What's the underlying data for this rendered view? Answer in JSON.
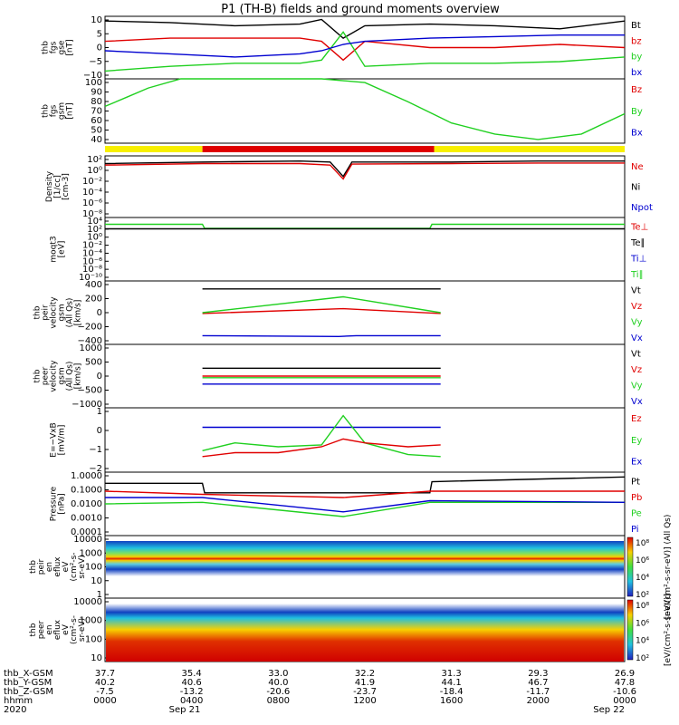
{
  "title": "P1 (TH-B) fields and ground moments overview",
  "colors": {
    "black": "#000000",
    "red": "#e00000",
    "green": "#20d020",
    "blue": "#0000d0",
    "yellow": "#f8f000",
    "bar_red": "#e00000"
  },
  "chart_data": [
    {
      "type": "line",
      "panel": "fgs_gse",
      "ylabel": [
        "thb",
        "fgs",
        "gse",
        "[nT]"
      ],
      "yticks": [
        "10",
        "5",
        "0",
        "−5",
        "−10"
      ],
      "ylim": [
        -10,
        10
      ],
      "legend": [
        "Bt",
        "bz",
        "by",
        "bx"
      ],
      "legend_colors": [
        "black",
        "red",
        "green",
        "blue"
      ],
      "series": [
        {
          "name": "Bt",
          "color": "black",
          "x": [
            0,
            3,
            6,
            9,
            10,
            11,
            12,
            15,
            18,
            21,
            24
          ],
          "y": [
            8.5,
            8,
            7,
            7.5,
            9,
            3,
            7,
            7.5,
            7,
            6,
            8.5
          ]
        },
        {
          "name": "bz",
          "color": "red",
          "x": [
            0,
            3,
            6,
            9,
            10,
            11,
            12,
            15,
            18,
            21,
            24
          ],
          "y": [
            2,
            3,
            3,
            3,
            2,
            -4,
            2,
            0,
            0,
            1,
            0
          ]
        },
        {
          "name": "by",
          "color": "green",
          "x": [
            0,
            3,
            6,
            9,
            10,
            11,
            12,
            15,
            18,
            21,
            24
          ],
          "y": [
            -7.5,
            -6,
            -5,
            -5,
            -4,
            5,
            -6,
            -5,
            -5,
            -4.5,
            -3
          ]
        },
        {
          "name": "bx",
          "color": "blue",
          "x": [
            0,
            3,
            6,
            9,
            10,
            11,
            12,
            15,
            18,
            21,
            24
          ],
          "y": [
            -1,
            -2,
            -3,
            -2,
            -1,
            1,
            2,
            3,
            3.5,
            4,
            4
          ]
        }
      ]
    },
    {
      "type": "line",
      "panel": "fgs_gsm",
      "ylabel": [
        "thb",
        "fgs",
        "gsm",
        "[nT]"
      ],
      "yticks": [
        "100",
        "90",
        "80",
        "70",
        "60",
        "50",
        "40"
      ],
      "ylim": [
        30,
        100
      ],
      "legend": [
        "Bz",
        "By",
        "Bx"
      ],
      "legend_colors": [
        "red",
        "green",
        "blue"
      ],
      "series": [
        {
          "name": "By",
          "color": "green",
          "x": [
            0,
            1,
            2,
            3.5,
            10,
            12,
            14,
            16,
            18,
            20,
            22,
            24
          ],
          "y": [
            70,
            80,
            90,
            100,
            100,
            96,
            75,
            52,
            40,
            34,
            40,
            62
          ]
        }
      ]
    },
    {
      "type": "line",
      "panel": "density",
      "ylabel": [
        "Density",
        "[1/cc]",
        "[cm-3]"
      ],
      "yticks": [
        "10²",
        "10⁰",
        "10⁻²",
        "10⁻⁴",
        "10⁻⁶",
        "10⁻⁸"
      ],
      "ylim": [
        "1e-9",
        "1e3"
      ],
      "legend": [
        "Ne",
        "Ni",
        "Npot"
      ],
      "legend_colors": [
        "red",
        "black",
        "blue"
      ],
      "series": [
        {
          "name": "Ni",
          "color": "black",
          "x": [
            0,
            4.5,
            9,
            10.4,
            11,
            11.4,
            16,
            20,
            24
          ],
          "y": [
            1.5,
            1.8,
            2,
            1.8,
            -1,
            1.8,
            1.8,
            2,
            2
          ]
        },
        {
          "name": "Ne",
          "color": "red",
          "x": [
            0,
            4.5,
            9,
            10.4,
            11,
            11.4,
            16,
            20,
            24
          ],
          "y": [
            1.2,
            1.5,
            1.5,
            1.2,
            -1.5,
            1.4,
            1.5,
            1.6,
            1.6
          ]
        }
      ]
    },
    {
      "type": "line",
      "panel": "moms_temp",
      "ylabel": [
        "moqt3",
        "[eV]"
      ],
      "yticks": [
        "10⁴",
        "10²",
        "10⁰",
        "10⁻²",
        "10⁻⁴",
        "10⁻⁶",
        "10⁻⁸",
        "10⁻¹⁰"
      ],
      "ylim": [
        "1e-10",
        "1e4"
      ],
      "legend": [
        "Te⊥",
        "Te∥",
        "Ti⊥",
        "Ti∥"
      ],
      "legend_colors": [
        "red",
        "black",
        "blue",
        "green"
      ],
      "series": [
        {
          "name": "Ti∥",
          "color": "green",
          "x": [
            0,
            4.5,
            4.6,
            15,
            15.1,
            24
          ],
          "y": [
            2.5,
            2.5,
            1.6,
            1.6,
            2.5,
            2.5
          ]
        },
        {
          "name": "Te∥",
          "color": "black",
          "x": [
            0,
            24
          ],
          "y": [
            1.5,
            1.5
          ]
        }
      ]
    },
    {
      "type": "line",
      "panel": "peir_velocity",
      "ylabel": [
        "thb",
        "peir",
        "velocity",
        "gsm",
        "(All Qs)",
        "[km/s]"
      ],
      "yticks": [
        "400",
        "200",
        "0",
        "−200",
        "−400"
      ],
      "ylim": [
        -400,
        400
      ],
      "legend": [
        "Vt",
        "Vz",
        "Vy",
        "Vx"
      ],
      "legend_colors": [
        "black",
        "red",
        "green",
        "blue"
      ],
      "series": [
        {
          "name": "Vt",
          "color": "black",
          "x": [
            4.5,
            10,
            10.8,
            11.2,
            11.6,
            15.5
          ],
          "y": [
            300,
            300,
            300,
            300,
            300,
            300
          ]
        },
        {
          "name": "Vz",
          "color": "red",
          "x": [
            4.5,
            11,
            15.5
          ],
          "y": [
            -10,
            50,
            -10
          ]
        },
        {
          "name": "Vy",
          "color": "green",
          "x": [
            4.5,
            11,
            15.5
          ],
          "y": [
            0,
            200,
            0
          ]
        },
        {
          "name": "Vx",
          "color": "blue",
          "x": [
            4.5,
            10.8,
            11.6,
            15.5
          ],
          "y": [
            -290,
            -300,
            -290,
            -290
          ]
        }
      ]
    },
    {
      "type": "line",
      "panel": "peer_velocity",
      "ylabel": [
        "thb",
        "peer",
        "velocity",
        "gsm",
        "(All Qs)",
        "[km/s]"
      ],
      "yticks": [
        "1000",
        "500",
        "0",
        "−500",
        "−1000"
      ],
      "ylim": [
        -1000,
        1000
      ],
      "legend": [
        "Vt",
        "Vz",
        "Vy",
        "Vx"
      ],
      "legend_colors": [
        "black",
        "red",
        "green",
        "blue"
      ],
      "series": [
        {
          "name": "Vt",
          "color": "black",
          "x": [
            4.5,
            15.5
          ],
          "y": [
            250,
            250
          ]
        },
        {
          "name": "Vz",
          "color": "red",
          "x": [
            4.5,
            15.5
          ],
          "y": [
            0,
            0
          ]
        },
        {
          "name": "Vy",
          "color": "green",
          "x": [
            4.5,
            15.5
          ],
          "y": [
            -50,
            -50
          ]
        },
        {
          "name": "Vx",
          "color": "blue",
          "x": [
            4.5,
            15.5
          ],
          "y": [
            -250,
            -250
          ]
        }
      ]
    },
    {
      "type": "line",
      "panel": "e_vxb",
      "ylabel": [
        "E=−VxB",
        "[mV/m]"
      ],
      "yticks": [
        "1",
        "0",
        "−1",
        "−2"
      ],
      "ylim": [
        -2.3,
        1
      ],
      "legend": [
        "Ez",
        "Ey",
        "Ex"
      ],
      "legend_colors": [
        "red",
        "green",
        "blue"
      ],
      "series": [
        {
          "name": "Ex",
          "color": "blue",
          "x": [
            4.5,
            9,
            10,
            11,
            12,
            15.5
          ],
          "y": [
            0,
            0,
            0,
            0,
            0,
            0
          ]
        },
        {
          "name": "Ey",
          "color": "green",
          "x": [
            4.5,
            6,
            8,
            10,
            11,
            12,
            14,
            15.5
          ],
          "y": [
            -1.2,
            -0.8,
            -1.0,
            -0.9,
            0.6,
            -0.8,
            -1.4,
            -1.5
          ]
        },
        {
          "name": "Ez",
          "color": "red",
          "x": [
            4.5,
            6,
            8,
            10,
            11,
            12,
            14,
            15.5
          ],
          "y": [
            -1.5,
            -1.3,
            -1.3,
            -1.0,
            -0.6,
            -0.8,
            -1.0,
            -0.9
          ]
        }
      ]
    },
    {
      "type": "line",
      "panel": "pressure",
      "ylabel": [
        "Pressure",
        "[nPa]"
      ],
      "yticks": [
        "1.0000",
        "0.1000",
        "0.0100",
        "0.0010",
        "0.0001"
      ],
      "ylim": [
        "1e-4",
        "1"
      ],
      "legend": [
        "Pt",
        "Pb",
        "Pe",
        "Pi"
      ],
      "legend_colors": [
        "black",
        "red",
        "green",
        "blue"
      ],
      "series": [
        {
          "name": "Pt",
          "color": "black",
          "x": [
            0,
            4.5,
            4.6,
            15,
            15.1,
            24
          ],
          "y": [
            -0.7,
            -0.7,
            -1.3,
            -1.3,
            -0.6,
            -0.3
          ]
        },
        {
          "name": "Pb",
          "color": "red",
          "x": [
            0,
            4.5,
            11,
            15,
            24
          ],
          "y": [
            -1.2,
            -1.4,
            -1.6,
            -1.2,
            -1.2
          ]
        },
        {
          "name": "Pe",
          "color": "green",
          "x": [
            0,
            4.5,
            11,
            15,
            24
          ],
          "y": [
            -2.0,
            -1.9,
            -2.8,
            -1.9,
            -1.9
          ]
        },
        {
          "name": "Pi",
          "color": "blue",
          "x": [
            0,
            4.5,
            11,
            15,
            24
          ],
          "y": [
            -1.6,
            -1.6,
            -2.5,
            -1.8,
            -1.9
          ]
        }
      ]
    },
    {
      "type": "heatmap",
      "panel": "peir_en_eflux",
      "ylabel": [
        "thb",
        "peir",
        "en",
        "eflux",
        "eV",
        "(cm²-s-",
        "sr-eV)"
      ],
      "yticks": [
        "10000",
        "1000",
        "100",
        "10",
        "1"
      ],
      "colorbar_ticks": [
        "10⁸",
        "10⁶",
        "10⁴",
        "10²"
      ],
      "colorbar_label": "[eV/(cm²-s-sr-eV)] (All Qs)"
    },
    {
      "type": "heatmap",
      "panel": "peer_en_eflux",
      "ylabel": [
        "thb",
        "peer",
        "en",
        "eflux",
        "eV",
        "(cm²-s-",
        "sr-eV)"
      ],
      "yticks": [
        "10000",
        "1000",
        "100",
        "10"
      ],
      "colorbar_ticks": [
        "10⁸",
        "10⁶",
        "10⁴",
        "10²"
      ],
      "colorbar_label": "[eV/(cm²-s-sr-eV)]"
    }
  ],
  "mode_bar": [
    {
      "from": 0,
      "to": 4.5,
      "color": "yellow"
    },
    {
      "from": 4.5,
      "to": 15.2,
      "color": "bar_red"
    },
    {
      "from": 15.2,
      "to": 24,
      "color": "yellow"
    }
  ],
  "x_axis": {
    "rows": [
      {
        "label": "thb_X-GSM",
        "values": [
          "37.7",
          "35.4",
          "33.0",
          "32.2",
          "31.3",
          "29.3",
          "26.9"
        ]
      },
      {
        "label": "thb_Y-GSM",
        "values": [
          "40.2",
          "40.6",
          "40.0",
          "41.9",
          "44.1",
          "46.7",
          "47.8"
        ]
      },
      {
        "label": "thb_Z-GSM",
        "values": [
          "-7.5",
          "-13.2",
          "-20.6",
          "-23.7",
          "-18.4",
          "-11.7",
          "-10.6"
        ]
      },
      {
        "label": "hhmm",
        "values": [
          "0000",
          "0400",
          "0800",
          "1200",
          "1600",
          "2000",
          "0000"
        ]
      },
      {
        "label": "2020",
        "values": [
          "",
          "Sep 21",
          "",
          "",
          "",
          "",
          "Sep 22"
        ]
      }
    ]
  }
}
